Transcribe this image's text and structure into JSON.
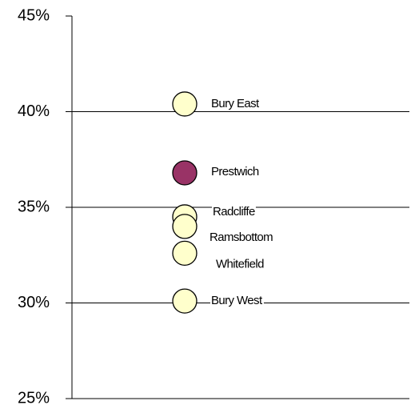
{
  "chart_data": {
    "type": "dot",
    "categories": [
      "Bury East",
      "Prestwich",
      "Radcliffe",
      "Ramsbottom",
      "Whitefield",
      "Bury West"
    ],
    "values": [
      40.4,
      36.8,
      34.5,
      34.0,
      32.6,
      30.1
    ],
    "colors": [
      "#ffffcc",
      "#993366",
      "#ffffcc",
      "#ffffcc",
      "#ffffcc",
      "#ffffcc"
    ],
    "ylim": [
      25,
      45
    ],
    "yticks": [
      {
        "value": 25,
        "label": "25%"
      },
      {
        "value": 30,
        "label": "30%"
      },
      {
        "value": 35,
        "label": "35%"
      },
      {
        "value": 40,
        "label": "40%"
      },
      {
        "value": 45,
        "label": "45%"
      }
    ],
    "grid": true
  }
}
